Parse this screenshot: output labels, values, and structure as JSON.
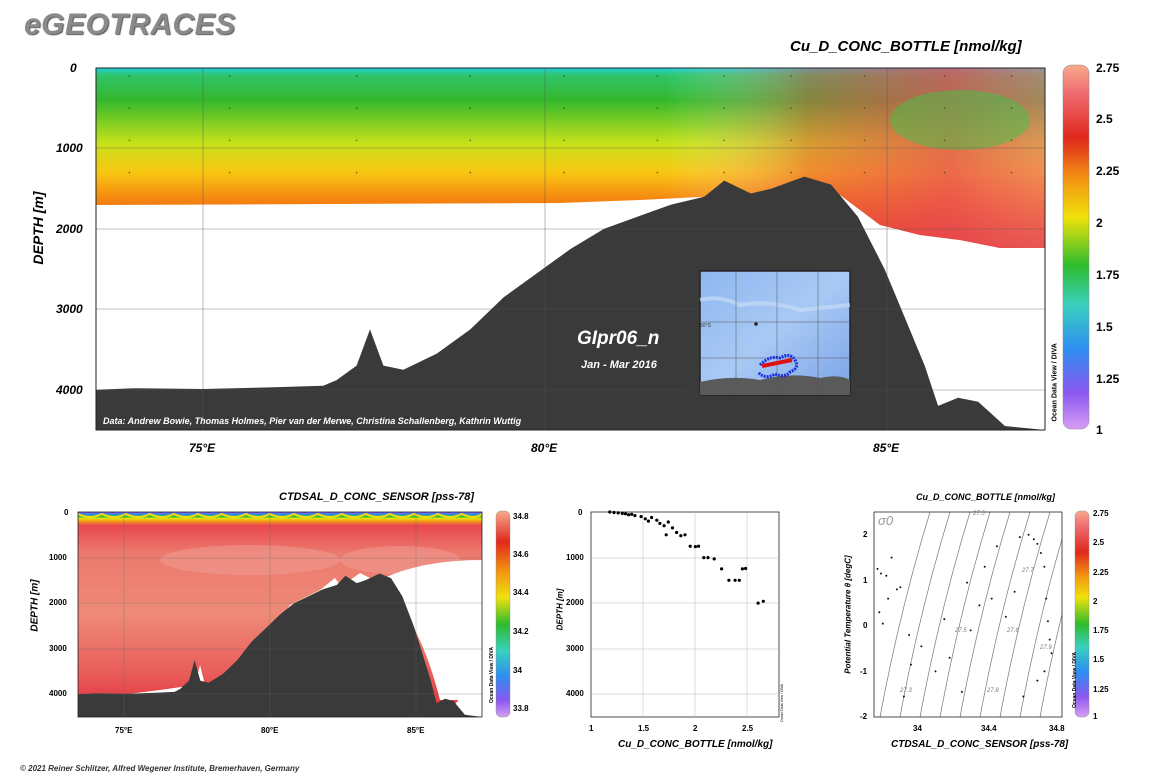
{
  "logo": "eGEOTRACES",
  "footer": "© 2021 Reiner Schlitzer, Alfred Wegener Institute, Bremerhaven, Germany",
  "odv_label": "Ocean Data View / DIVA",
  "main": {
    "title": "Cu_D_CONC_BOTTLE [nmol/kg]",
    "ylabel": "DEPTH [m]",
    "yticks": [
      "0",
      "1000",
      "2000",
      "3000",
      "4000"
    ],
    "xticks": [
      "75°E",
      "80°E",
      "85°E"
    ],
    "section_name": "GIpr06_n",
    "period": "Jan - Mar 2016",
    "credits": "Data: Andrew Bowie, Thomas Holmes, Pier van der Merwe, Christina Schallenberg, Kathrin Wuttig",
    "colorbar_ticks": [
      "2.75",
      "2.5",
      "2.25",
      "2",
      "1.75",
      "1.5",
      "1.25",
      "1"
    ],
    "inset_lat_labels": [
      "50°S",
      "70°S"
    ],
    "inset_lon_labels": [
      "60°E",
      "80°E",
      "100°E"
    ]
  },
  "salinity": {
    "title": "CTDSAL_D_CONC_SENSOR [pss-78]",
    "ylabel": "DEPTH [m]",
    "yticks": [
      "0",
      "1000",
      "2000",
      "3000",
      "4000"
    ],
    "xticks": [
      "75°E",
      "80°E",
      "85°E"
    ],
    "colorbar_ticks": [
      "34.8",
      "34.6",
      "34.4",
      "34.2",
      "34",
      "33.8"
    ]
  },
  "scatter": {
    "xlabel": "Cu_D_CONC_BOTTLE [nmol/kg]",
    "ylabel": "DEPTH [m]",
    "xticks": [
      "1",
      "1.5",
      "2",
      "2.5"
    ],
    "yticks": [
      "0",
      "1000",
      "2000",
      "3000",
      "4000"
    ]
  },
  "ts": {
    "title": "Cu_D_CONC_BOTTLE [nmol/kg]",
    "xlabel": "CTDSAL_D_CONC_SENSOR [pss-78]",
    "ylabel": "Potential Temperature θ [degC]",
    "xticks": [
      "34",
      "34.4",
      "34.8"
    ],
    "yticks": [
      "2",
      "1",
      "0",
      "-1",
      "-2"
    ],
    "sigma_label": "σ0",
    "isopycnal_labels": [
      "27.3",
      "27.5",
      "27.6",
      "27.7",
      "27.8",
      "27.9"
    ],
    "colorbar_ticks": [
      "2.75",
      "2.5",
      "2.25",
      "2",
      "1.75",
      "1.5",
      "1.25",
      "1"
    ]
  },
  "colors": {
    "seafloor": "#3a3a3a",
    "gradient": [
      "#f7a98c",
      "#e8474e",
      "#e0281c",
      "#f39a12",
      "#efe20c",
      "#2dbb2c",
      "#3ad0c0",
      "#2e8ef0",
      "#8a57f0",
      "#d79df4"
    ]
  },
  "chart_data": [
    {
      "type": "heatmap",
      "title": "Cu_D_CONC_BOTTLE [nmol/kg]",
      "xlabel": "",
      "ylabel": "DEPTH [m]",
      "xlim": [
        73.4,
        87.6
      ],
      "ylim": [
        4500,
        0
      ],
      "colorbar_range": [
        1,
        2.75
      ],
      "seafloor_profile": {
        "x": [
          73.4,
          74,
          75,
          76,
          76.8,
          77,
          77.3,
          77.5,
          77.7,
          78,
          78.5,
          79,
          79.5,
          80,
          80.5,
          81,
          81.5,
          82,
          82.5,
          82.8,
          83.2,
          83.5,
          84,
          84.4,
          84.8,
          85.2,
          85.5,
          85.8,
          86,
          86.3,
          86.6,
          87,
          87.6
        ],
        "depth": [
          4000,
          3980,
          3990,
          3970,
          3950,
          3880,
          3700,
          3250,
          3700,
          3750,
          3550,
          3250,
          2850,
          2550,
          2250,
          2000,
          1850,
          1700,
          1600,
          1400,
          1560,
          1500,
          1350,
          1450,
          1850,
          2500,
          3100,
          3700,
          4200,
          4100,
          4150,
          4450,
          4500
        ]
      },
      "data_bottom_depth": {
        "x": [
          73.4,
          82,
          83.8,
          85,
          86,
          87.3
        ],
        "depth": [
          1700,
          1700,
          1450,
          1850,
          2100,
          2250
        ]
      },
      "sample_stations_lon": [
        73.9,
        75.4,
        77.3,
        79.0,
        80.4,
        81.8,
        82.8,
        83.8,
        84.9,
        86.1,
        87.1
      ]
    },
    {
      "type": "heatmap",
      "title": "CTDSAL_D_CONC_SENSOR [pss-78]",
      "xlabel": "",
      "ylabel": "DEPTH [m]",
      "xlim": [
        73.4,
        87.6
      ],
      "ylim": [
        4500,
        0
      ],
      "colorbar_range": [
        33.7,
        34.8
      ]
    },
    {
      "type": "scatter",
      "title": "",
      "xlabel": "Cu_D_CONC_BOTTLE [nmol/kg]",
      "ylabel": "DEPTH [m]",
      "xlim": [
        1,
        2.8
      ],
      "ylim": [
        4500,
        0
      ],
      "x": [
        1.18,
        1.22,
        1.26,
        1.3,
        1.33,
        1.36,
        1.39,
        1.42,
        1.48,
        1.52,
        1.55,
        1.58,
        1.63,
        1.66,
        1.7,
        1.74,
        1.78,
        1.72,
        1.82,
        1.86,
        1.9,
        1.95,
        2.0,
        2.03,
        2.08,
        2.12,
        2.18,
        2.25,
        2.32,
        2.38,
        2.42,
        2.45,
        2.48,
        2.6,
        2.65
      ],
      "y": [
        0,
        10,
        20,
        30,
        40,
        60,
        50,
        80,
        100,
        150,
        200,
        120,
        180,
        250,
        300,
        220,
        350,
        500,
        450,
        520,
        500,
        750,
        760,
        750,
        1000,
        1000,
        1030,
        1250,
        1500,
        1500,
        1500,
        1250,
        1240,
        2000,
        1960
      ]
    },
    {
      "type": "scatter",
      "title": "Cu_D_CONC_BOTTLE [nmol/kg]",
      "xlabel": "CTDSAL_D_CONC_SENSOR [pss-78]",
      "ylabel": "Potential Temperature θ [degC]",
      "xlim": [
        33.75,
        34.82
      ],
      "ylim": [
        -2,
        2.5
      ],
      "x": [
        33.77,
        33.79,
        33.82,
        33.78,
        33.8,
        33.83,
        33.85,
        33.9,
        33.95,
        34.02,
        34.1,
        34.18,
        34.25,
        34.3,
        34.35,
        34.42,
        34.5,
        34.58,
        34.63,
        34.66,
        34.68,
        34.7,
        34.72,
        34.73,
        34.74,
        34.75,
        34.76,
        34.72,
        34.68,
        34.6,
        34.55,
        34.45,
        34.38,
        34.28,
        34.15,
        33.96,
        33.92,
        33.88
      ],
      "y": [
        1.25,
        1.15,
        1.1,
        0.3,
        0.05,
        0.6,
        1.5,
        0.85,
        -0.2,
        -0.45,
        -1.0,
        -0.7,
        -1.45,
        -0.1,
        0.45,
        0.6,
        0.2,
        1.95,
        2.0,
        1.9,
        1.8,
        1.6,
        1.3,
        0.6,
        0.1,
        -0.3,
        -0.6,
        -1.0,
        -1.2,
        -1.55,
        0.75,
        1.75,
        1.3,
        0.95,
        0.15,
        -0.85,
        -1.55,
        0.8
      ],
      "colorbar_range": [
        1,
        2.75
      ]
    }
  ]
}
